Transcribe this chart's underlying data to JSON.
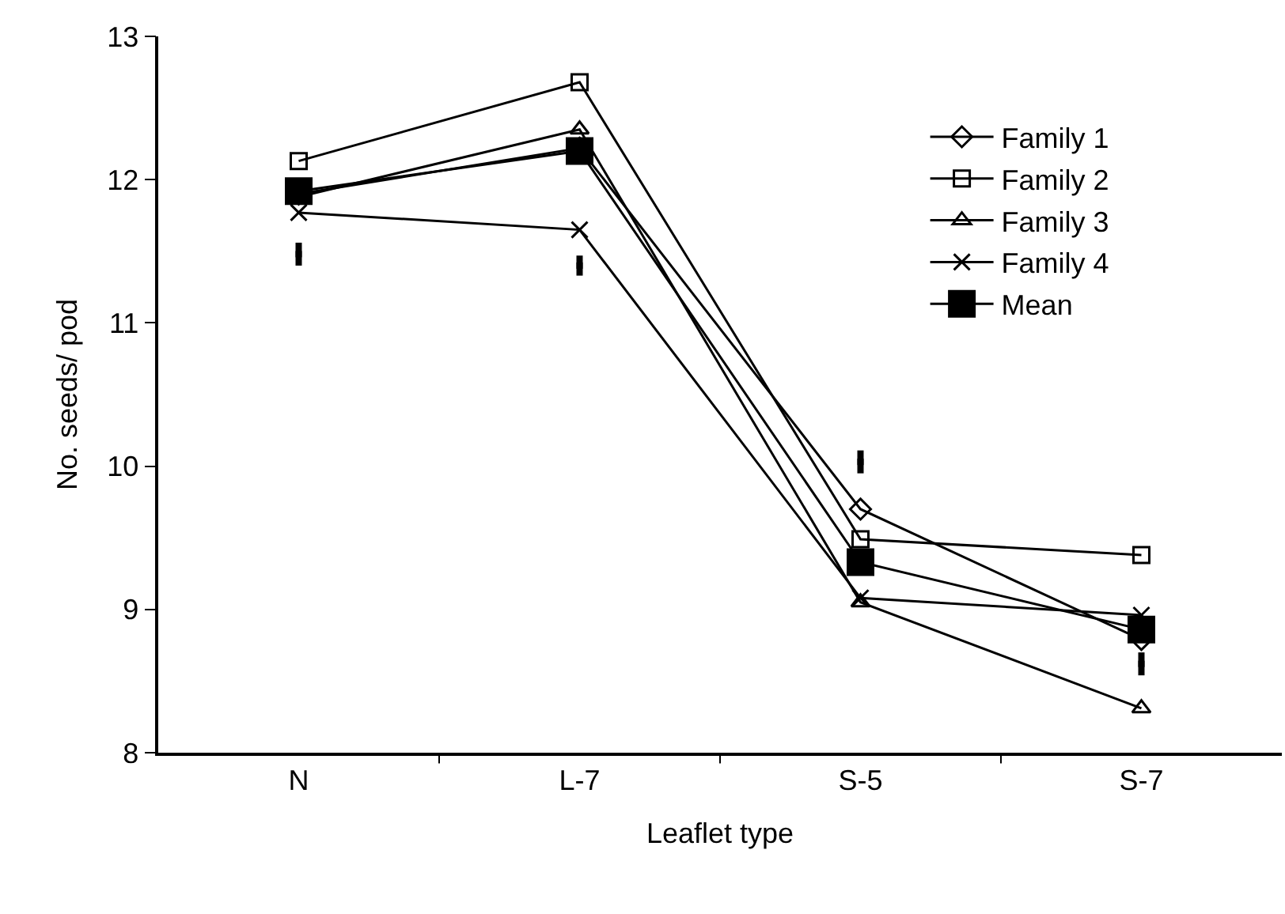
{
  "chart_data": {
    "type": "line",
    "xlabel": "Leaflet type",
    "ylabel": "No. seeds/ pod",
    "categories": [
      "N",
      "L-7",
      "S-5",
      "S-7"
    ],
    "ylim": [
      8,
      13
    ],
    "yticks": [
      8,
      9,
      10,
      11,
      12,
      13
    ],
    "grid": false,
    "legend": "top right",
    "line_style": "solid",
    "series": [
      {
        "name": "Family 1",
        "color": "#000000",
        "marker": "diamond",
        "values": [
          11.9,
          12.22,
          9.7,
          8.79
        ]
      },
      {
        "name": "Family 2",
        "color": "#000000",
        "marker": "square",
        "values": [
          12.13,
          12.68,
          9.49,
          9.38
        ]
      },
      {
        "name": "Family 3",
        "color": "#000000",
        "marker": "triangle",
        "values": [
          11.88,
          12.35,
          9.05,
          8.31
        ]
      },
      {
        "name": "Family 4",
        "color": "#000000",
        "marker": "cross",
        "values": [
          11.77,
          11.65,
          9.08,
          8.96
        ]
      },
      {
        "name": "Mean",
        "color": "#000000",
        "marker": "square",
        "values": [
          11.92,
          12.2,
          9.33,
          8.86
        ]
      },
      {
        "type": "scatter",
        "color": "#000000",
        "marker": "square",
        "values": [
          11.48,
          11.4,
          10.03,
          8.62
        ],
        "errors": [
          0.08,
          0.07,
          0.08,
          0.08
        ]
      }
    ]
  }
}
